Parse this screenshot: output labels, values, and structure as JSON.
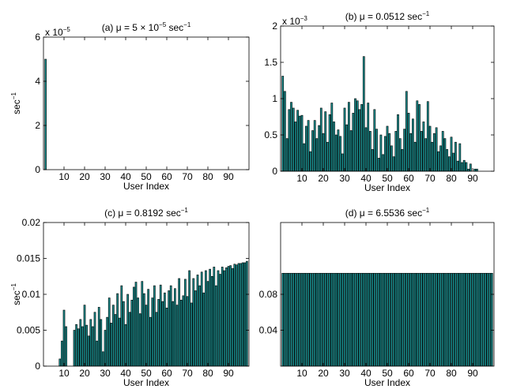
{
  "chart_data": [
    {
      "type": "bar",
      "title": [
        {
          "text": "(a) μ = 5 × 10"
        },
        {
          "sup": "−5"
        },
        {
          "text": " sec"
        },
        {
          "sup": "−1"
        }
      ],
      "x_label": "User Index",
      "y_label": [
        {
          "text": "sec"
        },
        {
          "sup": "−1"
        }
      ],
      "y_multiplier": [
        {
          "text": "x 10"
        },
        {
          "sup": "−5"
        }
      ],
      "color": "#178c8c",
      "xlim": [
        0,
        100
      ],
      "xticks": [
        10,
        20,
        30,
        40,
        50,
        60,
        70,
        80,
        90
      ],
      "ylim": [
        0,
        6
      ],
      "yticks": [
        0,
        2,
        4,
        6
      ],
      "x": [
        1,
        2,
        3,
        4,
        5,
        6,
        7,
        8,
        9,
        10,
        11,
        12,
        13,
        14,
        15,
        16,
        17,
        18,
        19,
        20,
        21,
        22,
        23,
        24,
        25,
        26,
        27,
        28,
        29,
        30,
        31,
        32,
        33,
        34,
        35,
        36,
        37,
        38,
        39,
        40,
        41,
        42,
        43,
        44,
        45,
        46,
        47,
        48,
        49,
        50,
        51,
        52,
        53,
        54,
        55,
        56,
        57,
        58,
        59,
        60,
        61,
        62,
        63,
        64,
        65,
        66,
        67,
        68,
        69,
        70,
        71,
        72,
        73,
        74,
        75,
        76,
        77,
        78,
        79,
        80,
        81,
        82,
        83,
        84,
        85,
        86,
        87,
        88,
        89,
        90,
        91,
        92,
        93,
        94,
        95,
        96,
        97,
        98,
        99
      ],
      "values": [
        5,
        0,
        0,
        0,
        0,
        0,
        0,
        0,
        0,
        0,
        0,
        0,
        0,
        0,
        0,
        0,
        0,
        0,
        0,
        0,
        0,
        0,
        0,
        0,
        0,
        0,
        0,
        0,
        0,
        0,
        0,
        0,
        0,
        0,
        0,
        0,
        0,
        0,
        0,
        0,
        0,
        0,
        0,
        0,
        0,
        0,
        0,
        0,
        0,
        0,
        0,
        0,
        0,
        0,
        0,
        0,
        0,
        0,
        0,
        0,
        0,
        0,
        0,
        0,
        0,
        0,
        0,
        0,
        0,
        0,
        0,
        0,
        0,
        0,
        0,
        0,
        0,
        0,
        0,
        0,
        0,
        0,
        0,
        0,
        0,
        0,
        0,
        0,
        0,
        0,
        0,
        0,
        0,
        0,
        0,
        0,
        0,
        0,
        0
      ]
    },
    {
      "type": "bar",
      "title": [
        {
          "text": "(b) μ = 0.0512 sec"
        },
        {
          "sup": "−1"
        }
      ],
      "x_label": "User Index",
      "y_multiplier": [
        {
          "text": "x 10"
        },
        {
          "sup": "−3"
        }
      ],
      "color": "#178c8c",
      "xlim": [
        0,
        100
      ],
      "xticks": [
        10,
        20,
        30,
        40,
        50,
        60,
        70,
        80,
        90
      ],
      "ylim": [
        0,
        2
      ],
      "yticks": [
        0,
        0.5,
        1,
        1.5,
        2
      ],
      "x": [
        1,
        2,
        3,
        4,
        5,
        6,
        7,
        8,
        9,
        10,
        11,
        12,
        13,
        14,
        15,
        16,
        17,
        18,
        19,
        20,
        21,
        22,
        23,
        24,
        25,
        26,
        27,
        28,
        29,
        30,
        31,
        32,
        33,
        34,
        35,
        36,
        37,
        38,
        39,
        40,
        41,
        42,
        43,
        44,
        45,
        46,
        47,
        48,
        49,
        50,
        51,
        52,
        53,
        54,
        55,
        56,
        57,
        58,
        59,
        60,
        61,
        62,
        63,
        64,
        65,
        66,
        67,
        68,
        69,
        70,
        71,
        72,
        73,
        74,
        75,
        76,
        77,
        78,
        79,
        80,
        81,
        82,
        83,
        84,
        85,
        86,
        87,
        88,
        89,
        90,
        91,
        92,
        93,
        94,
        95,
        96,
        97,
        98,
        99
      ],
      "values": [
        1.31,
        1.1,
        0.45,
        0.85,
        0.95,
        0.87,
        0.68,
        0.84,
        0.76,
        0.77,
        0.38,
        0.62,
        0.7,
        0.27,
        0.56,
        0.7,
        0.45,
        0.63,
        0.87,
        0.52,
        0.82,
        0.4,
        0.78,
        0.94,
        0.68,
        0.5,
        0.57,
        0.48,
        0.24,
        0.87,
        0.64,
        0.95,
        0.56,
        0.8,
        1.0,
        0.97,
        0.85,
        0.92,
        1.58,
        0.6,
        0.94,
        0.55,
        0.3,
        0.85,
        0.58,
        0.18,
        0.5,
        0.23,
        0.48,
        0.62,
        0.52,
        0.35,
        0.2,
        0.55,
        0.78,
        0.45,
        0.3,
        0.58,
        1.1,
        0.8,
        0.52,
        0.72,
        0.4,
        0.97,
        0.92,
        0.55,
        0.68,
        0.45,
        0.96,
        0.62,
        0.4,
        0.52,
        0.6,
        0.27,
        0.35,
        0.55,
        0.45,
        0.3,
        0.2,
        0.47,
        0.25,
        0.4,
        0.14,
        0.38,
        0.12,
        0.15,
        0.12,
        0.03,
        0.1,
        0,
        0.03,
        0.03,
        0,
        0,
        0,
        0,
        0,
        0,
        0
      ]
    },
    {
      "type": "bar",
      "title": [
        {
          "text": "(c) μ = 0.8192 sec"
        },
        {
          "sup": "−1"
        }
      ],
      "x_label": "User Index",
      "y_label": [
        {
          "text": "sec"
        },
        {
          "sup": "−1"
        }
      ],
      "color": "#178c8c",
      "xlim": [
        0,
        100
      ],
      "xticks": [
        10,
        20,
        30,
        40,
        50,
        60,
        70,
        80,
        90
      ],
      "ylim": [
        0,
        0.02
      ],
      "yticks": [
        0,
        0.005,
        0.01,
        0.015,
        0.02
      ],
      "x": [
        1,
        2,
        3,
        4,
        5,
        6,
        7,
        8,
        9,
        10,
        11,
        12,
        13,
        14,
        15,
        16,
        17,
        18,
        19,
        20,
        21,
        22,
        23,
        24,
        25,
        26,
        27,
        28,
        29,
        30,
        31,
        32,
        33,
        34,
        35,
        36,
        37,
        38,
        39,
        40,
        41,
        42,
        43,
        44,
        45,
        46,
        47,
        48,
        49,
        50,
        51,
        52,
        53,
        54,
        55,
        56,
        57,
        58,
        59,
        60,
        61,
        62,
        63,
        64,
        65,
        66,
        67,
        68,
        69,
        70,
        71,
        72,
        73,
        74,
        75,
        76,
        77,
        78,
        79,
        80,
        81,
        82,
        83,
        84,
        85,
        86,
        87,
        88,
        89,
        90,
        91,
        92,
        93,
        94,
        95,
        96,
        97,
        98,
        99
      ],
      "values": [
        0,
        0,
        0,
        0,
        0,
        0,
        0,
        0.001,
        0.0035,
        0.0078,
        0.0055,
        0,
        0,
        0,
        0.005,
        0.0058,
        0.0052,
        0.0065,
        0.0055,
        0.0085,
        0.0057,
        0.0042,
        0.0065,
        0.0055,
        0.0075,
        0.0035,
        0.0082,
        0.0065,
        0.002,
        0.005,
        0.0068,
        0.0095,
        0.006,
        0.0085,
        0.0072,
        0.0101,
        0.0067,
        0.0112,
        0.009,
        0.0058,
        0.01,
        0.0075,
        0.0092,
        0.011,
        0.0117,
        0.0095,
        0.0073,
        0.0118,
        0.0101,
        0.0085,
        0.0107,
        0.0068,
        0.0095,
        0.0112,
        0.0075,
        0.0093,
        0.0113,
        0.009,
        0.0102,
        0.0081,
        0.0105,
        0.0112,
        0.009,
        0.0108,
        0.0085,
        0.0122,
        0.0092,
        0.0098,
        0.0121,
        0.0097,
        0.0133,
        0.0088,
        0.0122,
        0.0105,
        0.0127,
        0.0112,
        0.0131,
        0.0102,
        0.0133,
        0.0118,
        0.0135,
        0.0125,
        0.0138,
        0.0112,
        0.0133,
        0.0128,
        0.0138,
        0.0133,
        0.0137,
        0.0139,
        0.014,
        0.0136,
        0.0142,
        0.0141,
        0.0143,
        0.0143,
        0.0144,
        0.0144,
        0.0146
      ]
    },
    {
      "type": "bar",
      "title": [
        {
          "text": "(d) μ = 6.5536 sec"
        },
        {
          "sup": "−1"
        }
      ],
      "x_label": "User Index",
      "color": "#178c8c",
      "xlim": [
        0,
        100
      ],
      "xticks": [
        10,
        20,
        30,
        40,
        50,
        60,
        70,
        80,
        90
      ],
      "ylim": [
        0,
        0.16
      ],
      "yticks": [
        0.04,
        0.08
      ],
      "x": [
        1,
        2,
        3,
        4,
        5,
        6,
        7,
        8,
        9,
        10,
        11,
        12,
        13,
        14,
        15,
        16,
        17,
        18,
        19,
        20,
        21,
        22,
        23,
        24,
        25,
        26,
        27,
        28,
        29,
        30,
        31,
        32,
        33,
        34,
        35,
        36,
        37,
        38,
        39,
        40,
        41,
        42,
        43,
        44,
        45,
        46,
        47,
        48,
        49,
        50,
        51,
        52,
        53,
        54,
        55,
        56,
        57,
        58,
        59,
        60,
        61,
        62,
        63,
        64,
        65,
        66,
        67,
        68,
        69,
        70,
        71,
        72,
        73,
        74,
        75,
        76,
        77,
        78,
        79,
        80,
        81,
        82,
        83,
        84,
        85,
        86,
        87,
        88,
        89,
        90,
        91,
        92,
        93,
        94,
        95,
        96,
        97,
        98,
        99
      ],
      "values": [
        0.1035,
        0.1035,
        0.1035,
        0.1035,
        0.1035,
        0.1035,
        0.1035,
        0.1035,
        0.1035,
        0.1035,
        0.1035,
        0.1035,
        0.1035,
        0.1035,
        0.1035,
        0.1035,
        0.1035,
        0.1035,
        0.1035,
        0.1035,
        0.1035,
        0.1035,
        0.1035,
        0.1035,
        0.1035,
        0.1035,
        0.1035,
        0.1035,
        0.1035,
        0.1035,
        0.1035,
        0.1035,
        0.1035,
        0.1035,
        0.1035,
        0.1035,
        0.1035,
        0.1035,
        0.1035,
        0.1035,
        0.1035,
        0.1035,
        0.1035,
        0.1035,
        0.1035,
        0.1035,
        0.1035,
        0.1035,
        0.1035,
        0.1035,
        0.1035,
        0.1035,
        0.1035,
        0.1035,
        0.1035,
        0.1035,
        0.1035,
        0.1035,
        0.1035,
        0.1035,
        0.1035,
        0.1035,
        0.1035,
        0.1035,
        0.1035,
        0.1035,
        0.1035,
        0.1035,
        0.1035,
        0.1035,
        0.1035,
        0.1035,
        0.1035,
        0.1035,
        0.1035,
        0.1035,
        0.1035,
        0.1035,
        0.1035,
        0.1035,
        0.1035,
        0.1035,
        0.1035,
        0.1035,
        0.1035,
        0.1035,
        0.1035,
        0.1035,
        0.1035,
        0.1035,
        0.1035,
        0.1035,
        0.1035,
        0.1035,
        0.1035,
        0.1035,
        0.1035,
        0.1035,
        0.1035
      ]
    }
  ]
}
